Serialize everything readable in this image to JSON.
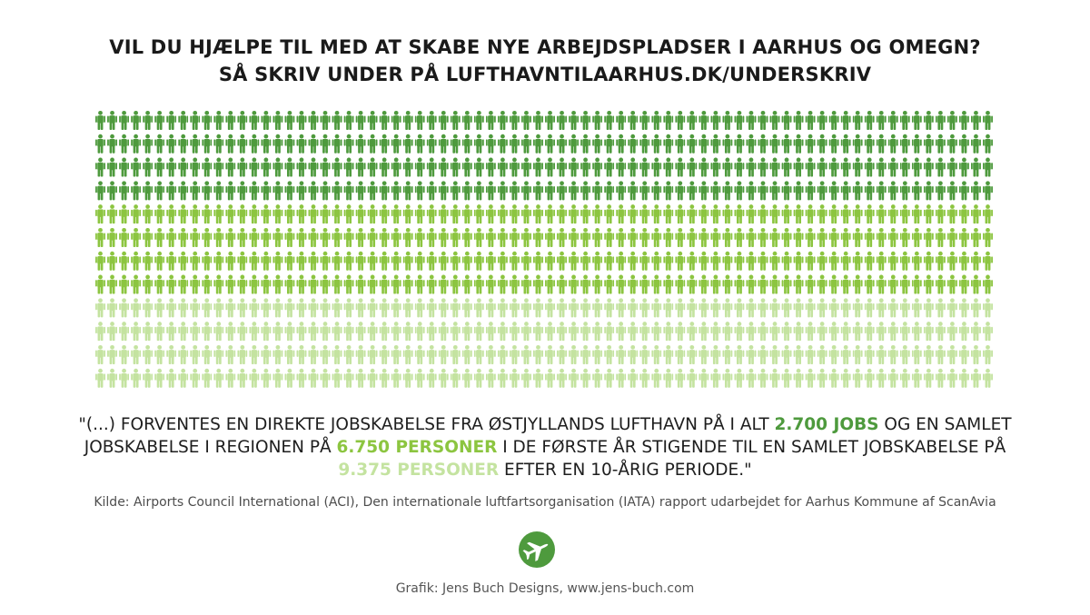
{
  "headline": {
    "line1": "VIL DU HJÆLPE TIL MED AT SKABE NYE ARBEJDSPLADSER I AARHUS OG OMEGN?",
    "line2": "SÅ SKRIV UNDER PÅ LUFTHAVNTILAARHUS.DK/UNDERSKRIV"
  },
  "people_grid": {
    "icon": "person-icon",
    "tiers": [
      {
        "rows": 4,
        "color": "#4e9a3d"
      },
      {
        "rows": 4,
        "color": "#8cc540"
      },
      {
        "rows": 4,
        "color": "#c4e3a0"
      }
    ]
  },
  "quote": {
    "line1_pre": "\"(...) FORVENTES EN DIREKTE JOBSKABELSE FRA ØSTJYLLANDS LUFTHAVN PÅ I ALT ",
    "hl_direct": "2.700 JOBS",
    "line1_post": " OG EN SAMLET",
    "line2_pre": "JOBSKABELSE I REGIONEN PÅ ",
    "hl_regional": "6.750 PERSONER",
    "line2_post": " I DE FØRSTE ÅR STIGENDE TIL EN SAMLET JOBSKABELSE PÅ",
    "hl_total": "9.375 PERSONER",
    "line3_post": " EFTER EN 10-ÅRIG PERIODE.\"",
    "colors": {
      "direct": "#4e9a3d",
      "regional": "#8cc540",
      "total": "#c4e3a0"
    }
  },
  "source": "Kilde: Airports Council International (ACI), Den internationale luftfartsorganisation (IATA) rapport udarbejdet for Aarhus Kommune af ScanAvia",
  "logo": {
    "icon": "airplane-icon",
    "color": "#4e9a3d"
  },
  "credit": "Grafik: Jens Buch Designs, www.jens-buch.com"
}
